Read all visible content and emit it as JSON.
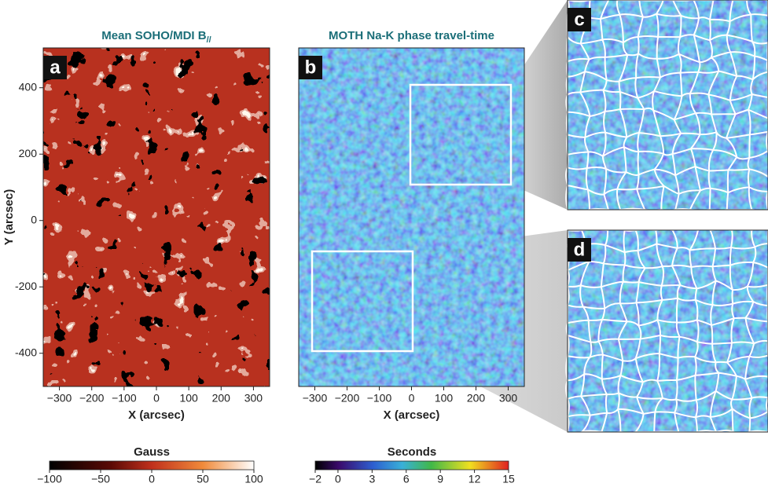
{
  "panels": [
    {
      "letter": "a",
      "title": "Mean SOHO/MDI B",
      "title_sub": "//",
      "xlabel": "X (arcsec)",
      "ylabel": "Y (arcsec)",
      "xlim": [
        -350,
        350
      ],
      "ylim": [
        -500,
        520
      ],
      "xticks": [
        {
          "value": -300,
          "label": "−300"
        },
        {
          "value": -200,
          "label": "−200"
        },
        {
          "value": -100,
          "label": "−100"
        },
        0,
        100,
        200,
        300
      ],
      "yticks": [
        -400,
        -200,
        0,
        200,
        400
      ]
    },
    {
      "letter": "b",
      "title": "MOTH Na-K phase travel-time",
      "xlabel": "X (arcsec)",
      "xlim": [
        -350,
        350
      ],
      "ylim": [
        -500,
        520
      ],
      "xticks": [
        {
          "value": -300,
          "label": "−300"
        },
        {
          "value": -200,
          "label": "−200"
        },
        {
          "value": -100,
          "label": "−100"
        },
        0,
        100,
        200,
        300
      ]
    }
  ],
  "insets": [
    {
      "letter": "c"
    },
    {
      "letter": "d"
    }
  ],
  "colorbars": [
    {
      "label": "Gauss",
      "lim": [
        -100,
        100
      ],
      "ticks": [
        {
          "value": -100,
          "label": "−100"
        },
        {
          "value": -50,
          "label": "−50"
        },
        0,
        50,
        100
      ]
    },
    {
      "label": "Seconds",
      "lim": [
        -2,
        15
      ],
      "ticks": [
        {
          "value": -2,
          "label": "−2"
        },
        0,
        3,
        6,
        9,
        12,
        15
      ]
    }
  ]
}
